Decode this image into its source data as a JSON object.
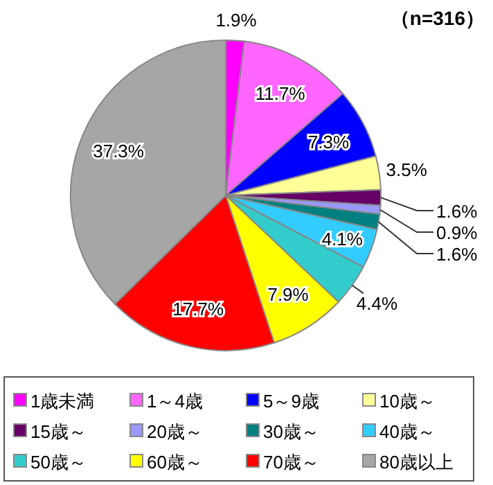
{
  "chart_data": {
    "type": "pie",
    "title": "（n=316）",
    "categories": [
      "1歳未満",
      "1～4歳",
      "5～9歳",
      "10歳～",
      "15歳～",
      "20歳～",
      "30歳～",
      "40歳～",
      "50歳～",
      "60歳～",
      "70歳～",
      "80歳以上"
    ],
    "values": [
      1.9,
      11.7,
      7.3,
      3.5,
      1.6,
      0.9,
      1.6,
      4.1,
      4.4,
      7.9,
      17.7,
      37.3
    ],
    "colors": [
      "#ff00ff",
      "#ff66ff",
      "#0000ff",
      "#ffff99",
      "#660066",
      "#9999ff",
      "#008080",
      "#33ccff",
      "#33cccc",
      "#ffff00",
      "#ff0000",
      "#a6a6a6"
    ],
    "value_labels": [
      "1.9%",
      "11.7%",
      "7.3%",
      "3.5%",
      "1.6%",
      "0.9%",
      "1.6%",
      "4.1%",
      "4.4%",
      "7.9%",
      "17.7%",
      "37.3%"
    ],
    "legend": "bottom"
  }
}
